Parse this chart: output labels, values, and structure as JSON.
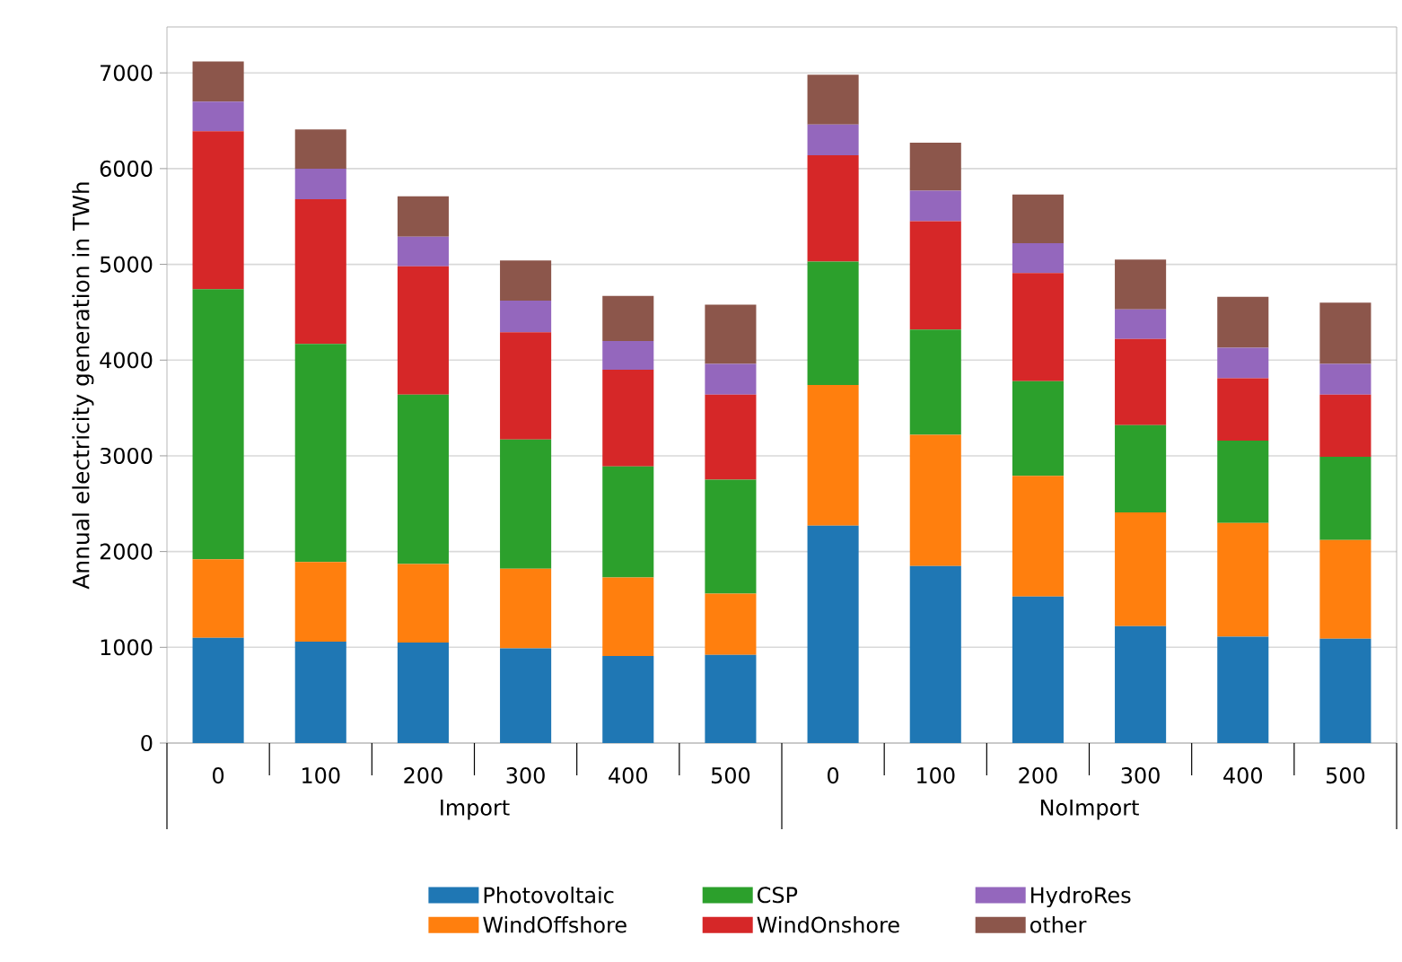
{
  "chart_data": {
    "type": "bar",
    "stacked": true,
    "ylabel": "Annual electricity generation in TWh",
    "categories": [
      "0",
      "100",
      "200",
      "300",
      "400",
      "500",
      "0",
      "100",
      "200",
      "300",
      "400",
      "500"
    ],
    "annotations": [
      "Import",
      "NoImport"
    ],
    "series": [
      {
        "name": "Photovoltaic",
        "color": "#1f77b4",
        "values": [
          1100,
          1060,
          1050,
          990,
          910,
          920,
          2270,
          1850,
          1530,
          1220,
          1110,
          1090
        ]
      },
      {
        "name": "WindOffshore",
        "color": "#ff7f0e",
        "values": [
          820,
          830,
          820,
          830,
          820,
          640,
          1470,
          1370,
          1260,
          1190,
          1190,
          1030
        ]
      },
      {
        "name": "CSP",
        "color": "#2ca02c",
        "values": [
          2820,
          2280,
          1770,
          1350,
          1160,
          1190,
          1290,
          1100,
          990,
          910,
          860,
          870
        ]
      },
      {
        "name": "WindOnshore",
        "color": "#d62728",
        "values": [
          1650,
          1510,
          1340,
          1120,
          1010,
          890,
          1110,
          1130,
          1130,
          900,
          650,
          650
        ]
      },
      {
        "name": "HydroRes",
        "color": "#9467bd",
        "values": [
          310,
          320,
          310,
          330,
          300,
          320,
          320,
          320,
          310,
          310,
          320,
          320
        ]
      },
      {
        "name": "other",
        "color": "#8c564b",
        "values": [
          420,
          410,
          420,
          420,
          470,
          620,
          520,
          500,
          510,
          520,
          530,
          640
        ]
      }
    ],
    "ylim": [
      0,
      7480
    ],
    "yticks": [
      0,
      1000,
      2000,
      3000,
      4000,
      5000,
      6000,
      7000
    ],
    "grid": "y",
    "legend": "bottom"
  }
}
